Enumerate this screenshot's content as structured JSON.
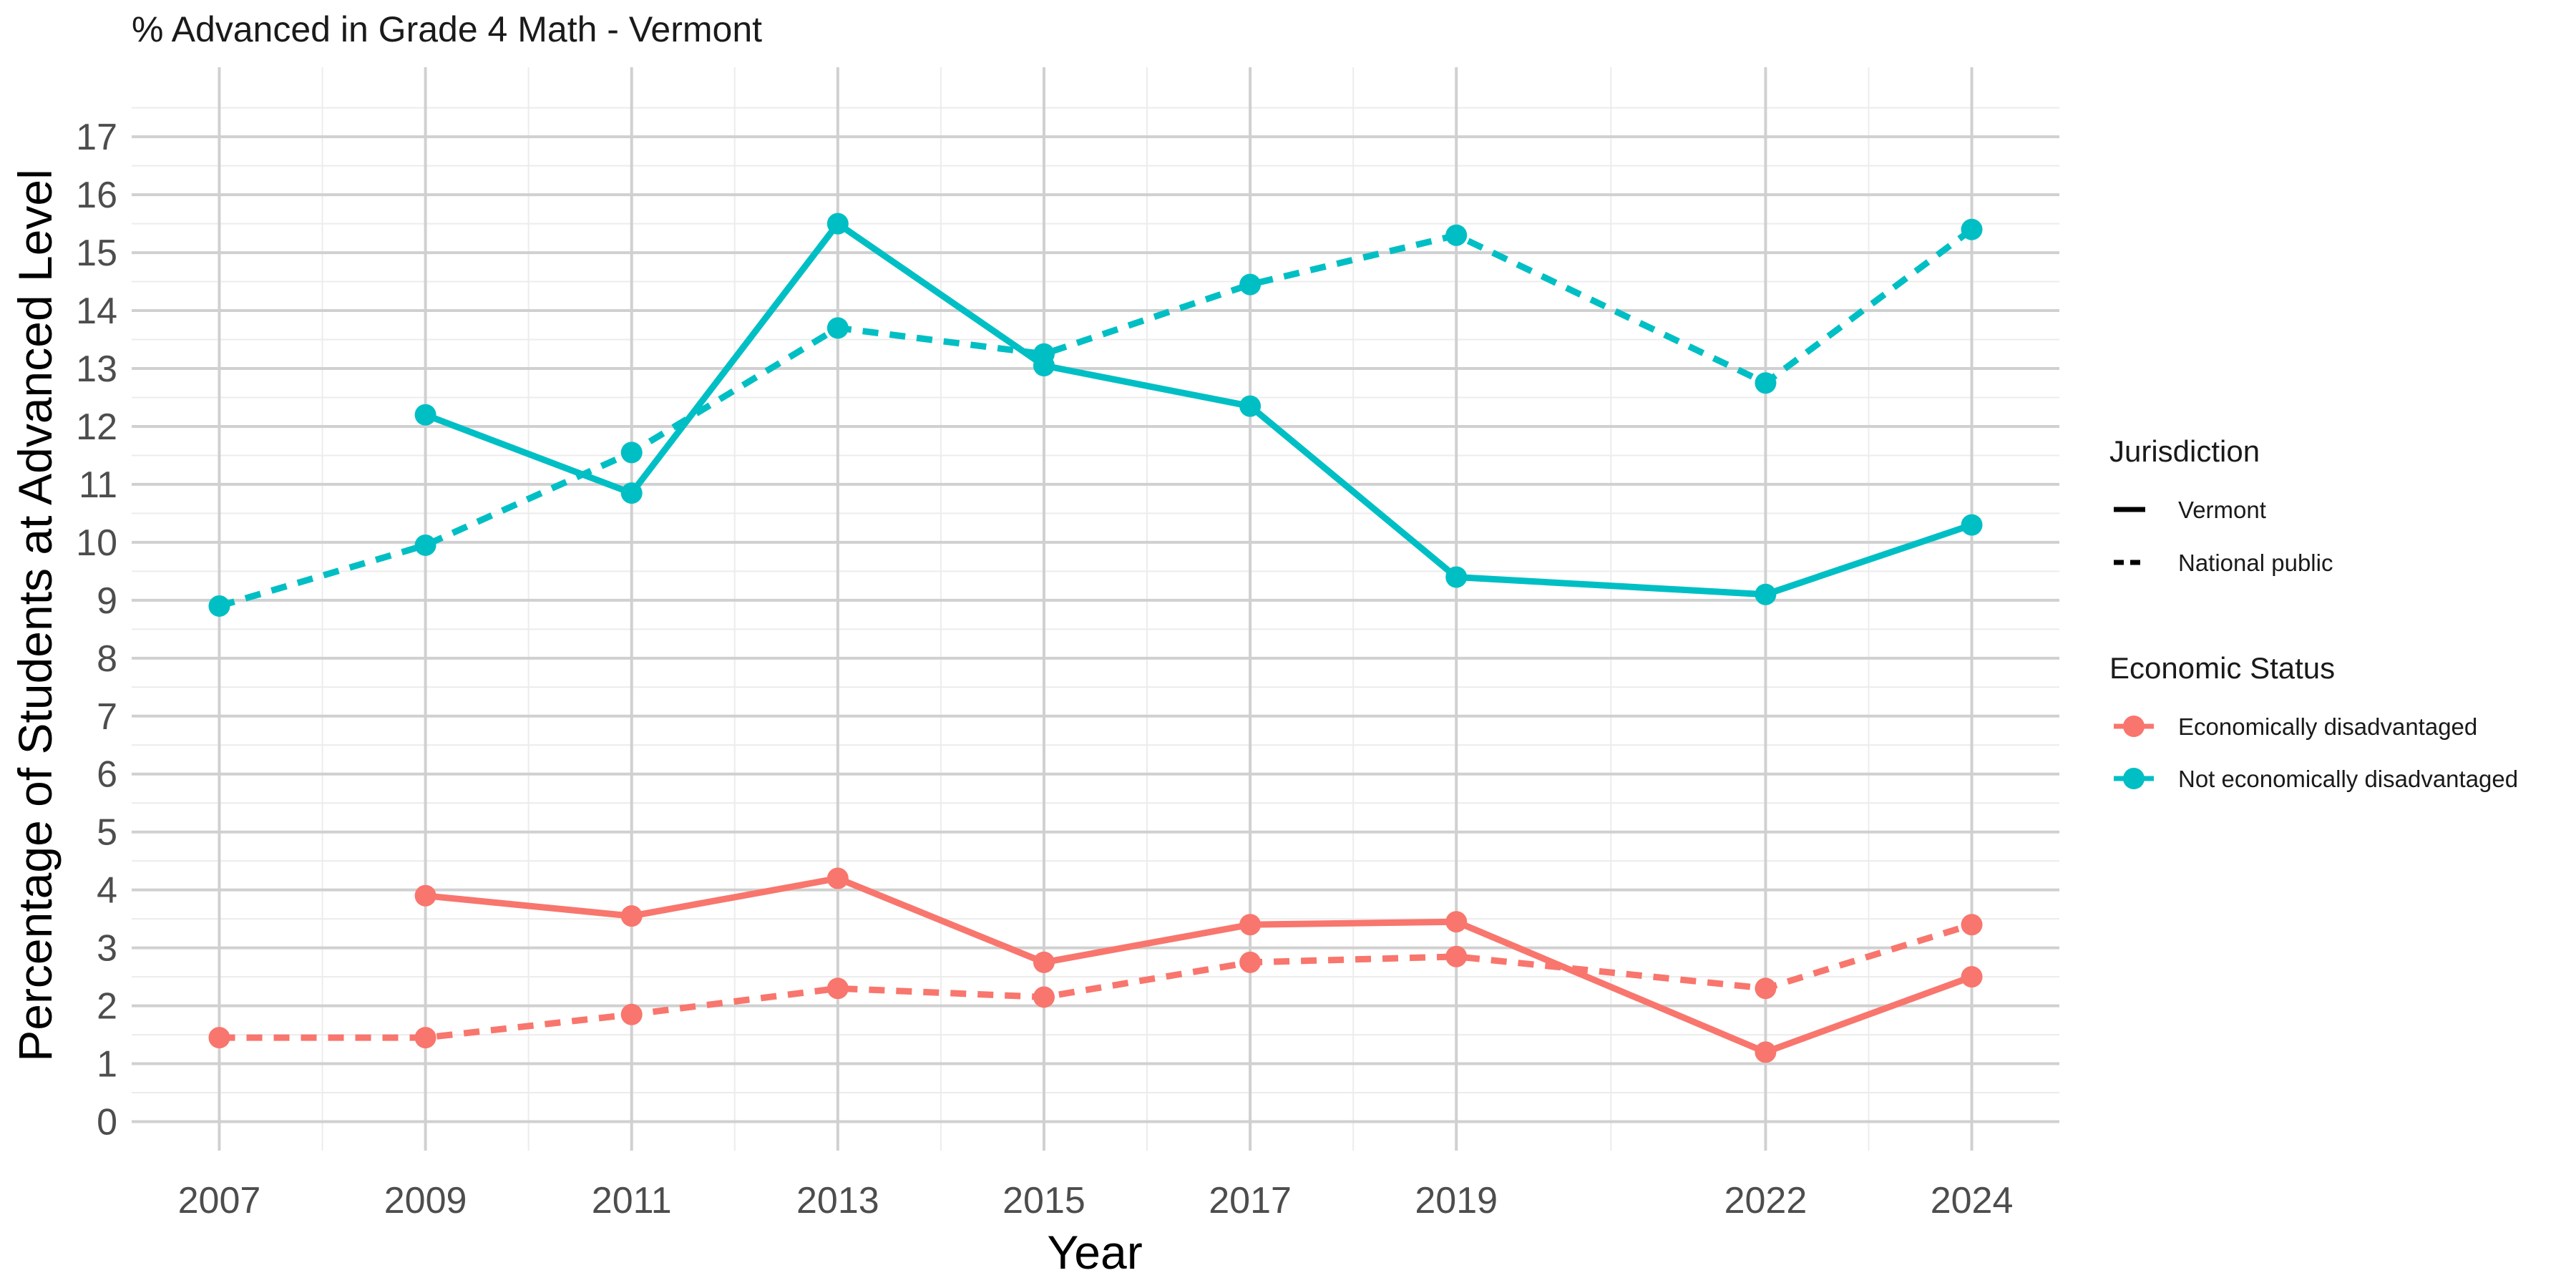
{
  "chart_data": {
    "type": "line",
    "title": "% Advanced in Grade 4 Math - Vermont",
    "xlabel": "Year",
    "ylabel": "Percentage of Students at Advanced Level",
    "x_ticks": [
      2007,
      2009,
      2011,
      2013,
      2015,
      2017,
      2019,
      2022,
      2024
    ],
    "x_tick_labels": [
      "2007",
      "2009",
      "2011",
      "2013",
      "2015",
      "2017",
      "2019",
      "2022",
      "2024"
    ],
    "xlim": [
      2006.15,
      2024.85
    ],
    "y_ticks": [
      0,
      1,
      2,
      3,
      4,
      5,
      6,
      7,
      8,
      9,
      10,
      11,
      12,
      13,
      14,
      15,
      16,
      17
    ],
    "y_tick_labels": [
      "0",
      "1",
      "2",
      "3",
      "4",
      "5",
      "6",
      "7",
      "8",
      "9",
      "10",
      "11",
      "12",
      "13",
      "14",
      "15",
      "16",
      "17"
    ],
    "ylim": [
      -0.5,
      18.2
    ],
    "grid": true,
    "legend_placement": "right",
    "legends": {
      "jurisdiction": {
        "title": "Jurisdiction",
        "items": [
          {
            "label": "Vermont",
            "linestyle": "solid"
          },
          {
            "label": "National public",
            "linestyle": "dashed"
          }
        ]
      },
      "economic_status": {
        "title": "Economic Status",
        "items": [
          {
            "label": "Economically disadvantaged",
            "color": "#F8766D"
          },
          {
            "label": "Not economically disadvantaged",
            "color": "#00BFC4"
          }
        ]
      }
    },
    "series": [
      {
        "jurisdiction": "Vermont",
        "economic_status": "Not economically disadvantaged",
        "color": "#00BFC4",
        "linestyle": "solid",
        "x": [
          2009,
          2011,
          2013,
          2015,
          2017,
          2019,
          2022,
          2024
        ],
        "values": [
          12.2,
          10.85,
          15.5,
          13.05,
          12.35,
          9.4,
          9.1,
          10.3
        ]
      },
      {
        "jurisdiction": "National public",
        "economic_status": "Not economically disadvantaged",
        "color": "#00BFC4",
        "linestyle": "dashed",
        "x": [
          2007,
          2009,
          2011,
          2013,
          2015,
          2017,
          2019,
          2022,
          2024
        ],
        "values": [
          8.9,
          9.95,
          11.55,
          13.7,
          13.25,
          14.45,
          15.3,
          12.75,
          15.4
        ]
      },
      {
        "jurisdiction": "Vermont",
        "economic_status": "Economically disadvantaged",
        "color": "#F8766D",
        "linestyle": "solid",
        "x": [
          2009,
          2011,
          2013,
          2015,
          2017,
          2019,
          2022,
          2024
        ],
        "values": [
          3.9,
          3.55,
          4.2,
          2.75,
          3.4,
          3.45,
          1.2,
          2.5
        ]
      },
      {
        "jurisdiction": "National public",
        "economic_status": "Economically disadvantaged",
        "color": "#F8766D",
        "linestyle": "dashed",
        "x": [
          2007,
          2009,
          2011,
          2013,
          2015,
          2017,
          2019,
          2022,
          2024
        ],
        "values": [
          1.45,
          1.45,
          1.85,
          2.3,
          2.15,
          2.75,
          2.85,
          2.3,
          3.4
        ]
      }
    ]
  }
}
